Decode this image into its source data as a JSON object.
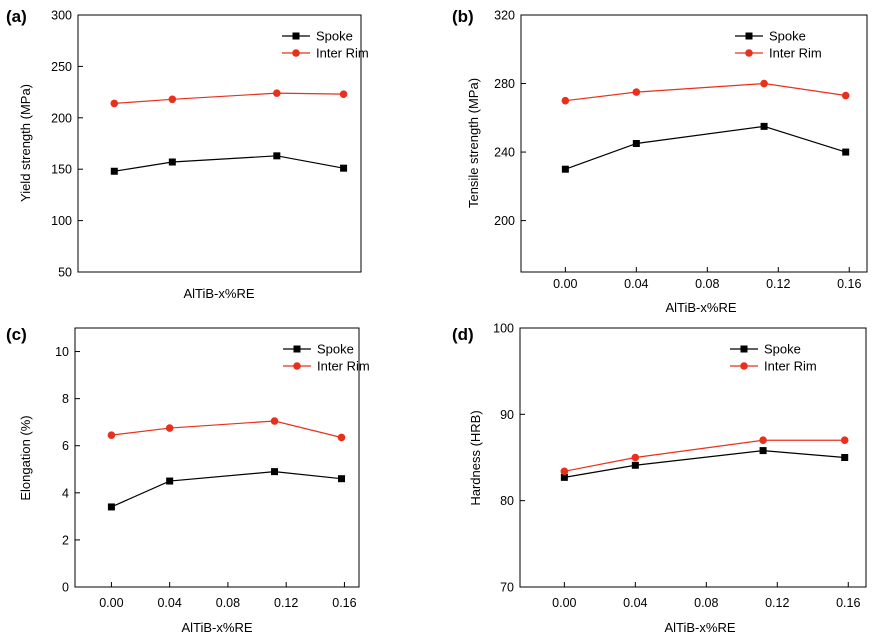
{
  "chart_data": [
    {
      "panel": "(a)",
      "type": "line",
      "xlabel": "AlTiB-x%RE",
      "ylabel": "Yield strength (MPa)",
      "x": [
        0.0,
        0.04,
        0.112,
        0.158
      ],
      "xlim": [
        -0.025,
        0.17
      ],
      "ylim": [
        50,
        300
      ],
      "yticks": [
        50,
        100,
        150,
        200,
        250,
        300
      ],
      "xticks": [],
      "legend_position": "top-right",
      "series": [
        {
          "name": "Spoke",
          "color": "#000000",
          "marker": "square",
          "values": [
            148,
            157,
            163,
            151
          ]
        },
        {
          "name": "Inter Rim",
          "color": "#e8301c",
          "marker": "circle",
          "values": [
            214,
            218,
            224,
            223
          ]
        }
      ]
    },
    {
      "panel": "(b)",
      "type": "line",
      "xlabel": "AlTiB-x%RE",
      "ylabel": "Tensile strength (MPa)",
      "x": [
        0.0,
        0.04,
        0.112,
        0.158
      ],
      "xlim": [
        -0.025,
        0.17
      ],
      "ylim": [
        170,
        320
      ],
      "yticks": [
        200,
        240,
        280,
        320
      ],
      "xticks": [
        "0.00",
        "0.04",
        "0.08",
        "0.12",
        "0.16"
      ],
      "legend_position": "top-right",
      "series": [
        {
          "name": "Spoke",
          "color": "#000000",
          "marker": "square",
          "values": [
            230,
            245,
            255,
            240
          ]
        },
        {
          "name": "Inter Rim",
          "color": "#e8301c",
          "marker": "circle",
          "values": [
            270,
            275,
            280,
            273
          ]
        }
      ]
    },
    {
      "panel": "(c)",
      "type": "line",
      "xlabel": "AlTiB-x%RE",
      "ylabel": "Elongation (%)",
      "x": [
        0.0,
        0.04,
        0.112,
        0.158
      ],
      "xlim": [
        -0.025,
        0.17
      ],
      "ylim": [
        0,
        11
      ],
      "yticks": [
        0,
        2,
        4,
        6,
        8,
        10
      ],
      "xticks": [
        "0.00",
        "0.04",
        "0.08",
        "0.12",
        "0.16"
      ],
      "legend_position": "top-right",
      "series": [
        {
          "name": "Spoke",
          "color": "#000000",
          "marker": "square",
          "values": [
            3.4,
            4.5,
            4.9,
            4.6
          ]
        },
        {
          "name": "Inter Rim",
          "color": "#e8301c",
          "marker": "circle",
          "values": [
            6.45,
            6.75,
            7.05,
            6.35
          ]
        }
      ]
    },
    {
      "panel": "(d)",
      "type": "line",
      "xlabel": "AlTiB-x%RE",
      "ylabel": "Hardness (HRB)",
      "x": [
        0.0,
        0.04,
        0.112,
        0.158
      ],
      "xlim": [
        -0.025,
        0.17
      ],
      "ylim": [
        70,
        100
      ],
      "yticks": [
        70,
        80,
        90,
        100
      ],
      "xticks": [
        "0.00",
        "0.04",
        "0.08",
        "0.12",
        "0.16"
      ],
      "legend_position": "top-right",
      "series": [
        {
          "name": "Spoke",
          "color": "#000000",
          "marker": "square",
          "values": [
            82.7,
            84.1,
            85.8,
            85.0
          ]
        },
        {
          "name": "Inter Rim",
          "color": "#e8301c",
          "marker": "circle",
          "values": [
            83.4,
            85.0,
            87.0,
            87.0
          ]
        }
      ]
    }
  ]
}
